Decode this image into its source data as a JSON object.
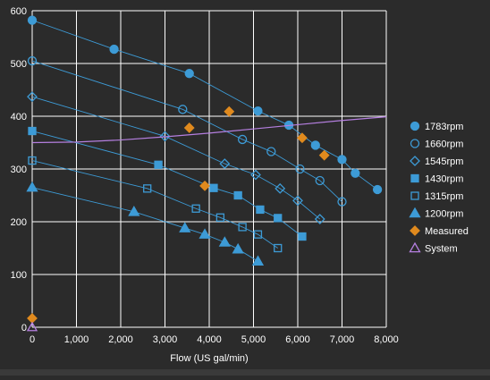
{
  "chart_data": {
    "type": "scatter",
    "title": "",
    "xlabel": "Flow (US gal/min)",
    "ylabel": "",
    "xlim": [
      0,
      8000
    ],
    "ylim": [
      0,
      600
    ],
    "x_ticks": [
      "0",
      "1,000",
      "2,000",
      "3,000",
      "4,000",
      "5,000",
      "6,000",
      "7,000",
      "8,000"
    ],
    "y_ticks": [
      "0",
      "100",
      "200",
      "300",
      "400",
      "500",
      "600"
    ],
    "grid": true,
    "legend_position": "right",
    "colors": {
      "background": "#2b2b2b",
      "plot_area": "#2b2b2b",
      "grid": "#ffffff",
      "pump": "#3d9bd6",
      "measured": "#e08a1e",
      "system": "#b57fe0",
      "text": "#ffffff"
    },
    "series": [
      {
        "name": "1783rpm",
        "marker": "circle-filled",
        "color": "#3d9bd6",
        "line": true,
        "x": [
          0,
          1850,
          3550,
          5100,
          5800,
          6400,
          7000,
          7300,
          7800
        ],
        "y": [
          582,
          527,
          481,
          410,
          383,
          345,
          318,
          292,
          261
        ]
      },
      {
        "name": "1660rpm",
        "marker": "circle-open",
        "color": "#3d9bd6",
        "line": true,
        "x": [
          0,
          3400,
          4750,
          5400,
          6050,
          6500,
          7000
        ],
        "y": [
          505,
          413,
          356,
          333,
          300,
          278,
          238
        ]
      },
      {
        "name": "1545rpm",
        "marker": "diamond-open",
        "color": "#3d9bd6",
        "line": true,
        "x": [
          0,
          3000,
          4350,
          5050,
          5600,
          6000,
          6500
        ],
        "y": [
          437,
          362,
          310,
          289,
          263,
          240,
          205
        ]
      },
      {
        "name": "1430rpm",
        "marker": "square-filled",
        "color": "#3d9bd6",
        "line": true,
        "x": [
          0,
          2850,
          4100,
          4650,
          5150,
          5550,
          6100
        ],
        "y": [
          372,
          308,
          264,
          250,
          223,
          207,
          172
        ]
      },
      {
        "name": "1315rpm",
        "marker": "square-open",
        "color": "#3d9bd6",
        "line": true,
        "x": [
          0,
          2600,
          3700,
          4250,
          4750,
          5100,
          5550
        ],
        "y": [
          316,
          263,
          225,
          208,
          190,
          176,
          150
        ]
      },
      {
        "name": "1200rpm",
        "marker": "triangle-filled",
        "color": "#3d9bd6",
        "line": true,
        "x": [
          0,
          2300,
          3450,
          3900,
          4350,
          4650,
          5100
        ],
        "y": [
          265,
          219,
          188,
          176,
          161,
          148,
          125
        ]
      },
      {
        "name": "Measured",
        "marker": "diamond-filled",
        "color": "#e08a1e",
        "line": false,
        "x": [
          0,
          3550,
          3900,
          4450,
          6100,
          6600
        ],
        "y": [
          17,
          378,
          268,
          409,
          359,
          326
        ]
      },
      {
        "name": "System",
        "marker": "triangle-open",
        "color": "#b57fe0",
        "line": true,
        "x": [
          0,
          1000,
          2000,
          3000,
          4000,
          5000,
          6000,
          7000,
          8000
        ],
        "y": [
          350,
          351,
          355,
          361,
          368,
          376,
          384,
          392,
          399
        ],
        "point_x": [
          0
        ],
        "point_y": [
          0
        ]
      }
    ]
  }
}
